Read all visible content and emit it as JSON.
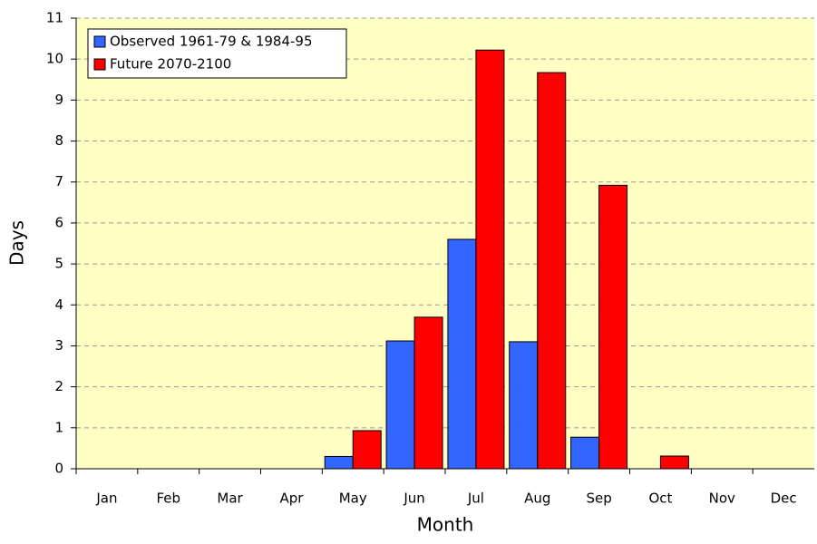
{
  "chart_data": {
    "type": "bar",
    "x_label": "Month",
    "y_label": "Days",
    "categories": [
      "Jan",
      "Feb",
      "Mar",
      "Apr",
      "May",
      "Jun",
      "Jul",
      "Aug",
      "Sep",
      "Oct",
      "Nov",
      "Dec"
    ],
    "series": [
      {
        "name": "Observed 1961-79 & 1984-95",
        "color": "#3366ff",
        "values": [
          0,
          0,
          0,
          0,
          0.3,
          3.12,
          5.6,
          3.1,
          0.77,
          0,
          0,
          0
        ]
      },
      {
        "name": "Future 2070-2100",
        "color": "#ff0000",
        "values": [
          0,
          0,
          0,
          0,
          0.93,
          3.7,
          10.22,
          9.67,
          6.92,
          0.31,
          0,
          0
        ]
      }
    ],
    "ylim": [
      0,
      11
    ],
    "yticks": [
      0,
      1,
      2,
      3,
      4,
      5,
      6,
      7,
      8,
      9,
      10,
      11
    ],
    "grid": true,
    "legend": "top-left",
    "background": "#ffffc4"
  }
}
